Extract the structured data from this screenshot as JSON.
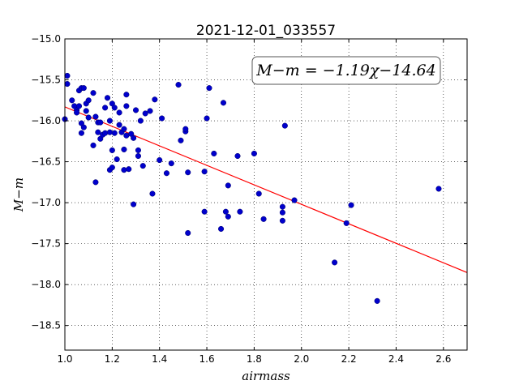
{
  "chart_data": {
    "type": "scatter",
    "title": "2021-12-01_033557",
    "xlabel": "airmass",
    "ylabel": "M−m",
    "xlim": [
      1.0,
      2.7
    ],
    "ylim": [
      -15.0,
      -18.8
    ],
    "y_inverted": true,
    "grid": true,
    "grid_style": "dotted",
    "x_ticks": [
      "1.0",
      "1.2",
      "1.4",
      "1.6",
      "1.8",
      "2.0",
      "2.2",
      "2.4",
      "2.6"
    ],
    "y_ticks": [
      "−15.0",
      "−15.5",
      "−16.0",
      "−16.5",
      "−17.0",
      "−17.5",
      "−18.0",
      "−18.5"
    ],
    "annotation": "M−m = −1.19χ−14.64",
    "fit": {
      "slope": -1.19,
      "intercept": -14.64,
      "color": "#ff0000"
    },
    "point_color": "#0000cc",
    "points": [
      {
        "x": 1.0,
        "y": -15.98
      },
      {
        "x": 1.01,
        "y": -15.55
      },
      {
        "x": 1.01,
        "y": -15.45
      },
      {
        "x": 1.03,
        "y": -15.75
      },
      {
        "x": 1.04,
        "y": -15.82
      },
      {
        "x": 1.05,
        "y": -15.87
      },
      {
        "x": 1.05,
        "y": -15.9
      },
      {
        "x": 1.06,
        "y": -15.63
      },
      {
        "x": 1.06,
        "y": -15.82
      },
      {
        "x": 1.07,
        "y": -15.6
      },
      {
        "x": 1.07,
        "y": -16.03
      },
      {
        "x": 1.07,
        "y": -16.15
      },
      {
        "x": 1.08,
        "y": -15.6
      },
      {
        "x": 1.08,
        "y": -16.08
      },
      {
        "x": 1.09,
        "y": -15.79
      },
      {
        "x": 1.09,
        "y": -15.88
      },
      {
        "x": 1.1,
        "y": -15.75
      },
      {
        "x": 1.1,
        "y": -15.96
      },
      {
        "x": 1.12,
        "y": -15.66
      },
      {
        "x": 1.12,
        "y": -16.3
      },
      {
        "x": 1.13,
        "y": -16.75
      },
      {
        "x": 1.13,
        "y": -15.95
      },
      {
        "x": 1.14,
        "y": -16.02
      },
      {
        "x": 1.14,
        "y": -16.14
      },
      {
        "x": 1.15,
        "y": -16.22
      },
      {
        "x": 1.15,
        "y": -16.02
      },
      {
        "x": 1.16,
        "y": -16.17
      },
      {
        "x": 1.17,
        "y": -15.84
      },
      {
        "x": 1.17,
        "y": -16.15
      },
      {
        "x": 1.18,
        "y": -15.72
      },
      {
        "x": 1.19,
        "y": -16.0
      },
      {
        "x": 1.19,
        "y": -16.14
      },
      {
        "x": 1.19,
        "y": -16.6
      },
      {
        "x": 1.2,
        "y": -16.36
      },
      {
        "x": 1.2,
        "y": -16.57
      },
      {
        "x": 1.2,
        "y": -15.79
      },
      {
        "x": 1.21,
        "y": -15.84
      },
      {
        "x": 1.21,
        "y": -16.15
      },
      {
        "x": 1.22,
        "y": -16.47
      },
      {
        "x": 1.23,
        "y": -15.9
      },
      {
        "x": 1.23,
        "y": -16.05
      },
      {
        "x": 1.24,
        "y": -16.14
      },
      {
        "x": 1.25,
        "y": -16.35
      },
      {
        "x": 1.25,
        "y": -16.1
      },
      {
        "x": 1.25,
        "y": -16.6
      },
      {
        "x": 1.26,
        "y": -16.18
      },
      {
        "x": 1.26,
        "y": -15.82
      },
      {
        "x": 1.26,
        "y": -15.68
      },
      {
        "x": 1.27,
        "y": -16.59
      },
      {
        "x": 1.28,
        "y": -16.16
      },
      {
        "x": 1.29,
        "y": -16.21
      },
      {
        "x": 1.29,
        "y": -17.02
      },
      {
        "x": 1.3,
        "y": -15.87
      },
      {
        "x": 1.31,
        "y": -16.43
      },
      {
        "x": 1.31,
        "y": -16.36
      },
      {
        "x": 1.32,
        "y": -16.0
      },
      {
        "x": 1.33,
        "y": -16.55
      },
      {
        "x": 1.34,
        "y": -15.91
      },
      {
        "x": 1.36,
        "y": -15.88
      },
      {
        "x": 1.37,
        "y": -16.89
      },
      {
        "x": 1.38,
        "y": -15.74
      },
      {
        "x": 1.4,
        "y": -16.48
      },
      {
        "x": 1.41,
        "y": -15.97
      },
      {
        "x": 1.43,
        "y": -16.64
      },
      {
        "x": 1.45,
        "y": -16.52
      },
      {
        "x": 1.48,
        "y": -15.56
      },
      {
        "x": 1.49,
        "y": -16.24
      },
      {
        "x": 1.51,
        "y": -16.13
      },
      {
        "x": 1.51,
        "y": -16.1
      },
      {
        "x": 1.52,
        "y": -16.63
      },
      {
        "x": 1.52,
        "y": -17.37
      },
      {
        "x": 1.59,
        "y": -17.11
      },
      {
        "x": 1.59,
        "y": -16.62
      },
      {
        "x": 1.6,
        "y": -15.97
      },
      {
        "x": 1.61,
        "y": -15.6
      },
      {
        "x": 1.63,
        "y": -16.4
      },
      {
        "x": 1.66,
        "y": -17.32
      },
      {
        "x": 1.67,
        "y": -15.78
      },
      {
        "x": 1.68,
        "y": -17.11
      },
      {
        "x": 1.69,
        "y": -17.17
      },
      {
        "x": 1.69,
        "y": -16.79
      },
      {
        "x": 1.73,
        "y": -16.43
      },
      {
        "x": 1.74,
        "y": -17.11
      },
      {
        "x": 1.8,
        "y": -16.4
      },
      {
        "x": 1.82,
        "y": -16.89
      },
      {
        "x": 1.84,
        "y": -17.2
      },
      {
        "x": 1.92,
        "y": -17.05
      },
      {
        "x": 1.92,
        "y": -17.12
      },
      {
        "x": 1.92,
        "y": -17.22
      },
      {
        "x": 1.93,
        "y": -16.06
      },
      {
        "x": 1.97,
        "y": -16.97
      },
      {
        "x": 2.14,
        "y": -17.73
      },
      {
        "x": 2.19,
        "y": -17.25
      },
      {
        "x": 2.21,
        "y": -17.03
      },
      {
        "x": 2.32,
        "y": -18.2
      },
      {
        "x": 2.58,
        "y": -16.83
      }
    ]
  }
}
